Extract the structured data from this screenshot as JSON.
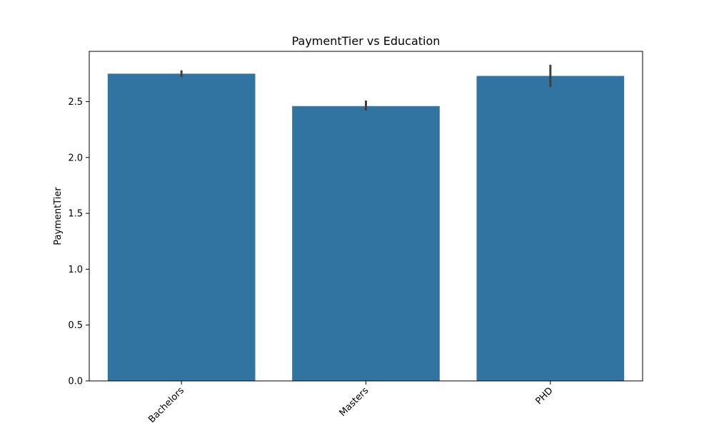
{
  "chart_data": {
    "type": "bar",
    "title": "PaymentTier vs Education",
    "xlabel": "",
    "ylabel": "PaymentTier",
    "categories": [
      "Bachelors",
      "Masters",
      "PHD"
    ],
    "values": [
      2.75,
      2.46,
      2.73
    ],
    "error_bars": [
      {
        "low": 2.72,
        "high": 2.78
      },
      {
        "low": 2.42,
        "high": 2.51
      },
      {
        "low": 2.63,
        "high": 2.83
      }
    ],
    "ylim": [
      0,
      2.95
    ],
    "yticks": [
      0.0,
      0.5,
      1.0,
      1.5,
      2.0,
      2.5
    ],
    "ytick_labels": [
      "0.0",
      "0.5",
      "1.0",
      "1.5",
      "2.0",
      "2.5"
    ],
    "xtick_rotation": "45 degrees",
    "grid": false,
    "bar_color": "#3274a1",
    "error_color": "#404040"
  }
}
